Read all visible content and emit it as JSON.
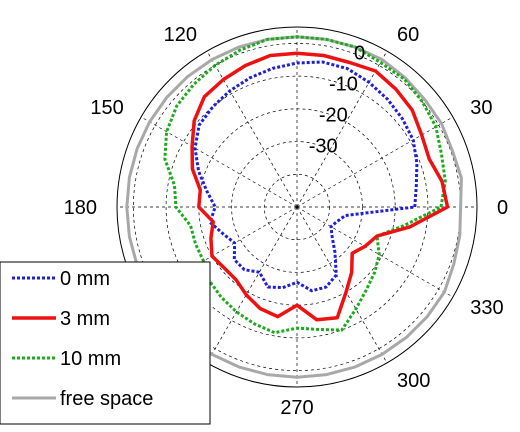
{
  "chart_data": {
    "type": "polar",
    "angle_unit": "deg",
    "angle_ticks": [
      "0",
      "30",
      "60",
      "120",
      "150",
      "180",
      "270",
      "300",
      "330"
    ],
    "angle_tick_values": [
      0,
      30,
      60,
      120,
      150,
      180,
      270,
      300,
      330
    ],
    "radial_ticks": [
      "0",
      "-10",
      "-20",
      "-30"
    ],
    "radial_tick_values": [
      0,
      -10,
      -20,
      -30
    ],
    "rlim": [
      -50,
      5
    ],
    "grid": true,
    "legend_position": "bottom-left",
    "series": [
      {
        "name": "0 mm",
        "color": "#1f1fd6",
        "dash": "3 2",
        "points": [
          [
            10,
            -13
          ],
          [
            20,
            -11
          ],
          [
            30,
            -9
          ],
          [
            40,
            -8
          ],
          [
            50,
            -7
          ],
          [
            60,
            -6
          ],
          [
            70,
            -5
          ],
          [
            80,
            -5
          ],
          [
            90,
            -6
          ],
          [
            100,
            -7
          ],
          [
            110,
            -8
          ],
          [
            120,
            -9
          ],
          [
            130,
            -10
          ],
          [
            140,
            -11
          ],
          [
            150,
            -14
          ],
          [
            160,
            -18
          ],
          [
            170,
            -22
          ],
          [
            180,
            -25
          ],
          [
            190,
            -23
          ],
          [
            200,
            -26
          ],
          [
            210,
            -28
          ],
          [
            220,
            -25
          ],
          [
            230,
            -25
          ],
          [
            240,
            -27
          ],
          [
            250,
            -24
          ],
          [
            260,
            -25
          ],
          [
            270,
            -27
          ],
          [
            280,
            -24
          ],
          [
            290,
            -24
          ],
          [
            300,
            -26
          ],
          [
            310,
            -32
          ],
          [
            320,
            -36
          ],
          [
            330,
            -38
          ],
          [
            340,
            -37
          ],
          [
            350,
            -35
          ],
          [
            0,
            -14
          ]
        ]
      },
      {
        "name": "3 mm",
        "color": "#ee1111",
        "dash": "",
        "points": [
          [
            0,
            -4
          ],
          [
            10,
            -5
          ],
          [
            20,
            -7
          ],
          [
            30,
            -6
          ],
          [
            40,
            -4
          ],
          [
            50,
            -3
          ],
          [
            60,
            -2
          ],
          [
            70,
            -3
          ],
          [
            80,
            -3
          ],
          [
            90,
            -3
          ],
          [
            100,
            -3
          ],
          [
            110,
            -4
          ],
          [
            120,
            -5
          ],
          [
            130,
            -6
          ],
          [
            140,
            -9
          ],
          [
            150,
            -13
          ],
          [
            160,
            -16
          ],
          [
            170,
            -20
          ],
          [
            180,
            -20
          ],
          [
            190,
            -24
          ],
          [
            200,
            -22
          ],
          [
            210,
            -20
          ],
          [
            220,
            -21
          ],
          [
            230,
            -21
          ],
          [
            240,
            -19
          ],
          [
            250,
            -17
          ],
          [
            260,
            -16
          ],
          [
            270,
            -20
          ],
          [
            280,
            -15
          ],
          [
            290,
            -14
          ],
          [
            300,
            -20
          ],
          [
            310,
            -24
          ],
          [
            320,
            -28
          ],
          [
            330,
            -26
          ],
          [
            340,
            -24
          ],
          [
            350,
            -15
          ]
        ]
      },
      {
        "name": "10 mm",
        "color": "#1eaa1e",
        "dash": "3 2",
        "points": [
          [
            0,
            -6
          ],
          [
            10,
            -4
          ],
          [
            20,
            -3
          ],
          [
            30,
            -1
          ],
          [
            40,
            0
          ],
          [
            50,
            1
          ],
          [
            60,
            1
          ],
          [
            70,
            2
          ],
          [
            80,
            2
          ],
          [
            90,
            2
          ],
          [
            100,
            2
          ],
          [
            110,
            1
          ],
          [
            120,
            0
          ],
          [
            130,
            -1
          ],
          [
            140,
            -2
          ],
          [
            150,
            -4
          ],
          [
            160,
            -7
          ],
          [
            170,
            -12
          ],
          [
            180,
            -13
          ],
          [
            190,
            -17
          ],
          [
            200,
            -17
          ],
          [
            210,
            -17
          ],
          [
            220,
            -15
          ],
          [
            230,
            -14
          ],
          [
            240,
            -13
          ],
          [
            250,
            -12
          ],
          [
            260,
            -11
          ],
          [
            270,
            -13
          ],
          [
            280,
            -12
          ],
          [
            290,
            -10
          ],
          [
            300,
            -14
          ],
          [
            310,
            -17
          ],
          [
            320,
            -19
          ],
          [
            330,
            -21
          ],
          [
            340,
            -24
          ],
          [
            350,
            -17
          ]
        ]
      },
      {
        "name": "free space",
        "color": "#a8a8a8",
        "dash": "",
        "points": [
          [
            0,
            0
          ],
          [
            10,
            1
          ],
          [
            20,
            0.5
          ],
          [
            30,
            1
          ],
          [
            40,
            1
          ],
          [
            50,
            1.5
          ],
          [
            60,
            2
          ],
          [
            70,
            2
          ],
          [
            80,
            2
          ],
          [
            90,
            2
          ],
          [
            100,
            2
          ],
          [
            110,
            2
          ],
          [
            120,
            2
          ],
          [
            130,
            2
          ],
          [
            140,
            2
          ],
          [
            150,
            2
          ],
          [
            160,
            2
          ],
          [
            170,
            2
          ],
          [
            180,
            2
          ],
          [
            190,
            2
          ],
          [
            200,
            2
          ],
          [
            210,
            2
          ],
          [
            220,
            2
          ],
          [
            230,
            2
          ],
          [
            240,
            2
          ],
          [
            250,
            2
          ],
          [
            260,
            2
          ],
          [
            270,
            2
          ],
          [
            280,
            2
          ],
          [
            290,
            2
          ],
          [
            300,
            2
          ],
          [
            310,
            2
          ],
          [
            320,
            2
          ],
          [
            330,
            2
          ],
          [
            340,
            1
          ],
          [
            350,
            0.5
          ]
        ]
      }
    ]
  }
}
